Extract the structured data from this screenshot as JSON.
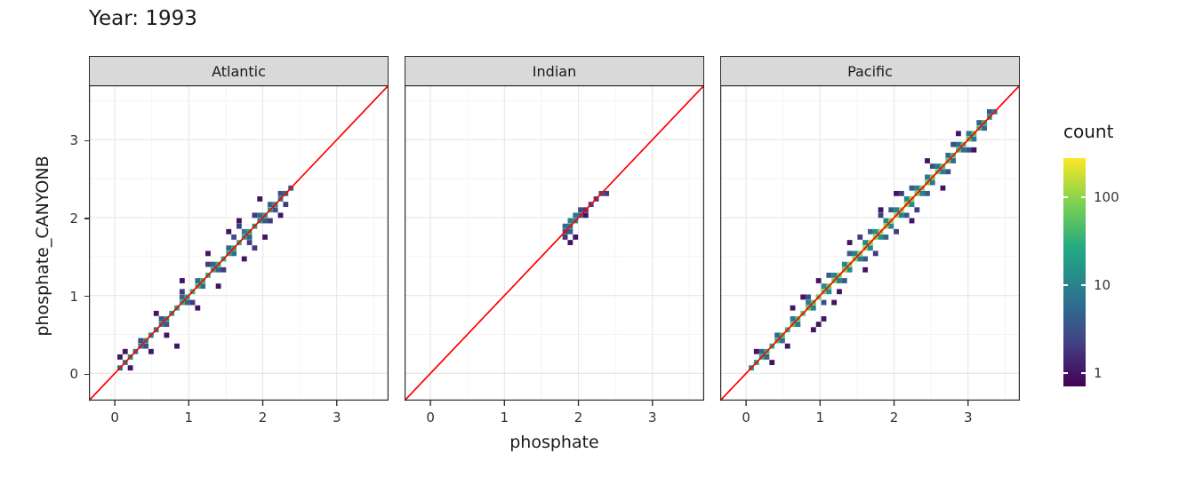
{
  "title": "Year: 1993",
  "axes": {
    "x_title": "phosphate",
    "y_title": "phosphate_CANYONB",
    "tick_labels": [
      "0",
      "1",
      "2",
      "3"
    ],
    "tick_values": [
      0,
      1,
      2,
      3
    ],
    "limits": [
      -0.35,
      3.7
    ]
  },
  "legend": {
    "title": "count",
    "entries": [
      {
        "label": "100",
        "value": 100
      },
      {
        "label": "10",
        "value": 10
      },
      {
        "label": "1",
        "value": 1
      }
    ],
    "log_range": [
      -0.15,
      2.45
    ]
  },
  "colors": {
    "identity_line": "#FF0000",
    "strip_bg": "#D9D9D9",
    "panel_bg": "#FFFFFF",
    "panel_border": "#2B2B2B",
    "grid_major": "#E6E6E6",
    "grid_minor": "#F3F3F3",
    "tick_text": "#333333",
    "viridis_stops": [
      [
        0,
        "#440154"
      ],
      [
        0.2,
        "#414487"
      ],
      [
        0.4,
        "#2A788E"
      ],
      [
        0.6,
        "#22A884"
      ],
      [
        0.8,
        "#7AD151"
      ],
      [
        1,
        "#FDE725"
      ]
    ]
  },
  "chart_data": {
    "type": "heatmap",
    "subtype": "binned 2d scatter (geom_bin2d) with y=x identity line, faceted by ocean",
    "x_variable": "phosphate",
    "y_variable": "phosphate_CANYONB",
    "bin_width": 0.07,
    "identity_line": "y = x",
    "count_scale": "log10, 1 to ~200, viridis",
    "facets": [
      {
        "name": "Atlantic",
        "bins": [
          [
            0.07,
            0.07,
            6
          ],
          [
            0.14,
            0.14,
            10
          ],
          [
            0.21,
            0.21,
            12
          ],
          [
            0.28,
            0.28,
            8
          ],
          [
            0.35,
            0.35,
            10
          ],
          [
            0.42,
            0.42,
            14
          ],
          [
            0.49,
            0.49,
            12
          ],
          [
            0.56,
            0.56,
            10
          ],
          [
            0.63,
            0.63,
            12
          ],
          [
            0.7,
            0.7,
            16
          ],
          [
            0.77,
            0.77,
            20
          ],
          [
            0.84,
            0.84,
            25
          ],
          [
            0.91,
            0.91,
            30
          ],
          [
            0.98,
            0.98,
            28
          ],
          [
            1.05,
            1.05,
            35
          ],
          [
            1.12,
            1.12,
            40
          ],
          [
            1.19,
            1.19,
            35
          ],
          [
            1.26,
            1.26,
            30
          ],
          [
            1.33,
            1.33,
            28
          ],
          [
            1.4,
            1.4,
            32
          ],
          [
            1.47,
            1.47,
            30
          ],
          [
            1.54,
            1.54,
            25
          ],
          [
            1.61,
            1.61,
            28
          ],
          [
            1.68,
            1.68,
            30
          ],
          [
            1.75,
            1.75,
            25
          ],
          [
            1.82,
            1.82,
            22
          ],
          [
            1.89,
            1.89,
            20
          ],
          [
            1.96,
            1.96,
            18
          ],
          [
            2.03,
            2.03,
            20
          ],
          [
            2.1,
            2.1,
            22
          ],
          [
            2.17,
            2.17,
            15
          ],
          [
            2.24,
            2.24,
            10
          ],
          [
            2.31,
            2.31,
            6
          ],
          [
            2.38,
            2.38,
            4
          ],
          [
            0.35,
            0.42,
            3
          ],
          [
            0.63,
            0.7,
            4
          ],
          [
            0.91,
            0.98,
            5
          ],
          [
            1.12,
            1.19,
            6
          ],
          [
            1.33,
            1.4,
            5
          ],
          [
            1.54,
            1.61,
            6
          ],
          [
            1.75,
            1.82,
            8
          ],
          [
            1.96,
            2.03,
            6
          ],
          [
            2.1,
            2.17,
            5
          ],
          [
            2.24,
            2.31,
            3
          ],
          [
            0.42,
            0.35,
            3
          ],
          [
            0.7,
            0.63,
            4
          ],
          [
            0.98,
            0.91,
            5
          ],
          [
            1.19,
            1.12,
            6
          ],
          [
            1.4,
            1.33,
            5
          ],
          [
            1.61,
            1.54,
            6
          ],
          [
            1.82,
            1.75,
            5
          ],
          [
            2.03,
            1.96,
            4
          ],
          [
            2.17,
            2.1,
            3
          ],
          [
            0.91,
            1.05,
            2
          ],
          [
            1.26,
            1.4,
            2
          ],
          [
            1.61,
            1.75,
            3
          ],
          [
            1.89,
            2.03,
            2
          ],
          [
            1.05,
            0.91,
            2
          ],
          [
            1.47,
            1.33,
            2
          ],
          [
            1.82,
            1.68,
            2
          ],
          [
            2.1,
            1.96,
            2
          ],
          [
            0.14,
            0.28,
            1
          ],
          [
            0.21,
            0.07,
            1
          ],
          [
            0.49,
            0.28,
            1
          ],
          [
            0.56,
            0.77,
            1
          ],
          [
            0.84,
            0.35,
            1
          ],
          [
            0.91,
            1.19,
            1
          ],
          [
            1.12,
            0.84,
            1
          ],
          [
            1.26,
            1.54,
            1
          ],
          [
            1.4,
            1.12,
            1
          ],
          [
            1.68,
            1.96,
            1
          ],
          [
            1.75,
            1.47,
            1
          ],
          [
            1.96,
            2.24,
            1
          ],
          [
            2.03,
            1.75,
            1
          ],
          [
            2.24,
            2.03,
            1
          ],
          [
            1.54,
            1.82,
            1
          ],
          [
            0.7,
            0.49,
            1
          ],
          [
            0.07,
            0.21,
            1
          ],
          [
            1.89,
            1.61,
            2
          ],
          [
            2.31,
            2.17,
            2
          ],
          [
            1.68,
            1.89,
            2
          ]
        ]
      },
      {
        "name": "Indian",
        "bins": [
          [
            1.82,
            1.82,
            3
          ],
          [
            1.82,
            1.89,
            6
          ],
          [
            1.89,
            1.82,
            4
          ],
          [
            1.89,
            1.89,
            8
          ],
          [
            1.89,
            1.96,
            10
          ],
          [
            1.96,
            1.96,
            12
          ],
          [
            1.96,
            2.03,
            8
          ],
          [
            2.03,
            2.03,
            5
          ],
          [
            2.03,
            2.1,
            3
          ],
          [
            2.1,
            2.1,
            2
          ],
          [
            2.17,
            2.17,
            2
          ],
          [
            2.24,
            2.24,
            2
          ],
          [
            2.31,
            2.31,
            3
          ],
          [
            2.38,
            2.31,
            2
          ],
          [
            1.96,
            1.75,
            1
          ],
          [
            1.89,
            1.68,
            1
          ],
          [
            1.82,
            1.75,
            2
          ],
          [
            2.1,
            2.03,
            1
          ]
        ]
      },
      {
        "name": "Pacific",
        "bins": [
          [
            0.07,
            0.07,
            15
          ],
          [
            0.14,
            0.14,
            25
          ],
          [
            0.21,
            0.21,
            30
          ],
          [
            0.28,
            0.28,
            35
          ],
          [
            0.35,
            0.35,
            30
          ],
          [
            0.42,
            0.42,
            40
          ],
          [
            0.49,
            0.49,
            45
          ],
          [
            0.56,
            0.56,
            40
          ],
          [
            0.63,
            0.63,
            50
          ],
          [
            0.7,
            0.7,
            55
          ],
          [
            0.77,
            0.77,
            60
          ],
          [
            0.84,
            0.84,
            65
          ],
          [
            0.91,
            0.91,
            60
          ],
          [
            0.98,
            0.98,
            70
          ],
          [
            1.05,
            1.05,
            80
          ],
          [
            1.12,
            1.12,
            75
          ],
          [
            1.19,
            1.19,
            85
          ],
          [
            1.26,
            1.26,
            90
          ],
          [
            1.33,
            1.33,
            100
          ],
          [
            1.4,
            1.4,
            110
          ],
          [
            1.47,
            1.47,
            100
          ],
          [
            1.54,
            1.54,
            95
          ],
          [
            1.61,
            1.61,
            105
          ],
          [
            1.68,
            1.68,
            110
          ],
          [
            1.75,
            1.75,
            120
          ],
          [
            1.82,
            1.82,
            130
          ],
          [
            1.89,
            1.89,
            120
          ],
          [
            1.96,
            1.96,
            110
          ],
          [
            2.03,
            2.03,
            115
          ],
          [
            2.1,
            2.1,
            120
          ],
          [
            2.17,
            2.17,
            110
          ],
          [
            2.24,
            2.24,
            100
          ],
          [
            2.31,
            2.31,
            90
          ],
          [
            2.38,
            2.38,
            85
          ],
          [
            2.45,
            2.45,
            80
          ],
          [
            2.52,
            2.52,
            75
          ],
          [
            2.59,
            2.59,
            70
          ],
          [
            2.66,
            2.66,
            65
          ],
          [
            2.73,
            2.73,
            60
          ],
          [
            2.8,
            2.8,
            55
          ],
          [
            2.87,
            2.87,
            50
          ],
          [
            2.94,
            2.94,
            55
          ],
          [
            3.01,
            3.01,
            60
          ],
          [
            3.08,
            3.08,
            50
          ],
          [
            3.15,
            3.15,
            40
          ],
          [
            3.22,
            3.22,
            30
          ],
          [
            3.29,
            3.29,
            20
          ],
          [
            3.36,
            3.36,
            10
          ],
          [
            0.21,
            0.28,
            5
          ],
          [
            0.42,
            0.49,
            6
          ],
          [
            0.63,
            0.7,
            8
          ],
          [
            0.84,
            0.91,
            10
          ],
          [
            1.05,
            1.12,
            12
          ],
          [
            1.19,
            1.26,
            10
          ],
          [
            1.33,
            1.4,
            12
          ],
          [
            1.47,
            1.54,
            10
          ],
          [
            1.61,
            1.68,
            12
          ],
          [
            1.75,
            1.82,
            14
          ],
          [
            1.89,
            1.96,
            12
          ],
          [
            2.03,
            2.1,
            10
          ],
          [
            2.17,
            2.24,
            12
          ],
          [
            2.31,
            2.38,
            10
          ],
          [
            2.45,
            2.52,
            8
          ],
          [
            2.59,
            2.66,
            8
          ],
          [
            2.73,
            2.8,
            6
          ],
          [
            2.87,
            2.94,
            6
          ],
          [
            3.01,
            3.08,
            8
          ],
          [
            3.15,
            3.22,
            5
          ],
          [
            3.29,
            3.36,
            4
          ],
          [
            0.28,
            0.21,
            5
          ],
          [
            0.49,
            0.42,
            6
          ],
          [
            0.7,
            0.63,
            8
          ],
          [
            0.91,
            0.84,
            10
          ],
          [
            1.12,
            1.05,
            12
          ],
          [
            1.26,
            1.19,
            10
          ],
          [
            1.4,
            1.33,
            12
          ],
          [
            1.54,
            1.47,
            10
          ],
          [
            1.68,
            1.61,
            12
          ],
          [
            1.82,
            1.75,
            14
          ],
          [
            1.96,
            1.89,
            12
          ],
          [
            2.1,
            2.03,
            10
          ],
          [
            2.24,
            2.17,
            12
          ],
          [
            2.38,
            2.31,
            10
          ],
          [
            2.52,
            2.45,
            8
          ],
          [
            2.66,
            2.59,
            8
          ],
          [
            2.8,
            2.73,
            6
          ],
          [
            2.94,
            2.87,
            6
          ],
          [
            3.08,
            3.01,
            8
          ],
          [
            3.22,
            3.15,
            5
          ],
          [
            0.84,
            0.98,
            3
          ],
          [
            1.12,
            1.26,
            4
          ],
          [
            1.4,
            1.54,
            4
          ],
          [
            1.68,
            1.82,
            5
          ],
          [
            1.96,
            2.1,
            4
          ],
          [
            2.24,
            2.38,
            4
          ],
          [
            2.52,
            2.66,
            3
          ],
          [
            2.8,
            2.94,
            3
          ],
          [
            1.05,
            0.91,
            3
          ],
          [
            1.33,
            1.19,
            4
          ],
          [
            1.61,
            1.47,
            4
          ],
          [
            1.89,
            1.75,
            5
          ],
          [
            2.17,
            2.03,
            4
          ],
          [
            2.45,
            2.31,
            4
          ],
          [
            2.73,
            2.59,
            3
          ],
          [
            3.01,
            2.87,
            3
          ],
          [
            1.54,
            1.75,
            2
          ],
          [
            1.82,
            2.03,
            2
          ],
          [
            2.1,
            2.31,
            2
          ],
          [
            1.75,
            1.54,
            2
          ],
          [
            2.03,
            1.82,
            2
          ],
          [
            2.31,
            2.1,
            2
          ],
          [
            0.14,
            0.28,
            1
          ],
          [
            0.35,
            0.14,
            1
          ],
          [
            0.56,
            0.35,
            1
          ],
          [
            0.77,
            0.98,
            1
          ],
          [
            0.91,
            0.56,
            1
          ],
          [
            0.98,
            1.19,
            1
          ],
          [
            1.19,
            0.91,
            1
          ],
          [
            1.4,
            1.68,
            1
          ],
          [
            1.61,
            1.33,
            1
          ],
          [
            1.82,
            2.1,
            1
          ],
          [
            2.03,
            2.31,
            1
          ],
          [
            2.24,
            1.96,
            1
          ],
          [
            2.45,
            2.73,
            1
          ],
          [
            2.66,
            2.38,
            1
          ],
          [
            2.87,
            3.08,
            1
          ],
          [
            3.08,
            2.87,
            1
          ],
          [
            0.63,
            0.84,
            1
          ],
          [
            1.26,
            1.05,
            1
          ],
          [
            0.98,
            0.63,
            1
          ],
          [
            1.05,
            0.7,
            1
          ]
        ]
      }
    ]
  }
}
